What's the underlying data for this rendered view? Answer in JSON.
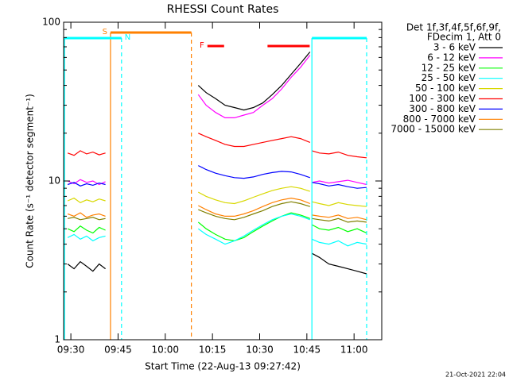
{
  "chart_data": {
    "type": "line",
    "title": "RHESSI Count Rates",
    "x_label": "Start Time (22-Aug-13 09:27:42)",
    "y_label": "Count Rate (s⁻¹ detector segment⁻¹)",
    "legend_header": [
      "Det 1f,3f,4f,5f,6f,9f,",
      "FDecim 1, Att 0"
    ],
    "footer": "21-Oct-2021 22:04",
    "log_y": true,
    "xlim": [
      567.7,
      668.8
    ],
    "ylim": [
      1,
      100
    ],
    "xticks": [
      {
        "value": 570,
        "label": "09:30"
      },
      {
        "value": 585,
        "label": "09:45"
      },
      {
        "value": 600,
        "label": "10:00"
      },
      {
        "value": 615,
        "label": "10:15"
      },
      {
        "value": 630,
        "label": "10:30"
      },
      {
        "value": 645,
        "label": "10:45"
      },
      {
        "value": 660,
        "label": "11:00"
      }
    ],
    "yticks": [
      1,
      10,
      100
    ],
    "minor_yticks": [
      2,
      3,
      4,
      5,
      6,
      7,
      8,
      9,
      20,
      30,
      40,
      50,
      60,
      70,
      80,
      90
    ],
    "x": [
      569,
      571,
      573,
      575,
      577,
      579,
      581,
      595,
      610.5,
      613,
      616,
      619,
      622,
      625,
      628,
      631,
      634,
      637,
      640,
      643,
      646,
      646.3,
      646.6,
      649,
      652,
      655,
      658,
      661,
      664
    ],
    "series": [
      {
        "name": "3 - 6 keV",
        "color": "#000000",
        "values": [
          3.0,
          2.8,
          3.1,
          2.9,
          2.7,
          3.0,
          2.8,
          null,
          40,
          36,
          33,
          30,
          29,
          28,
          29,
          31,
          35,
          40,
          47,
          55,
          65,
          null,
          3.5,
          3.3,
          3.0,
          2.9,
          2.8,
          2.7,
          2.6
        ]
      },
      {
        "name": "6 - 12 keV",
        "color": "#ff00ff",
        "values": [
          10,
          9.6,
          10.2,
          9.8,
          10,
          9.5,
          9.9,
          null,
          35,
          30,
          27,
          25,
          25,
          26,
          27,
          30,
          33,
          38,
          45,
          52,
          62,
          null,
          9.8,
          10,
          9.7,
          9.9,
          10.1,
          9.8,
          9.5
        ]
      },
      {
        "name": "12 - 25 keV",
        "color": "#00ff00",
        "values": [
          5.0,
          4.8,
          5.2,
          4.9,
          4.7,
          5.1,
          4.9,
          null,
          5.5,
          5.0,
          4.6,
          4.3,
          4.2,
          4.4,
          4.8,
          5.2,
          5.6,
          6.0,
          6.3,
          6.1,
          5.8,
          null,
          5.3,
          5.0,
          4.9,
          5.1,
          4.8,
          5.0,
          4.7
        ]
      },
      {
        "name": "25 - 50 keV",
        "color": "#00ffff",
        "values": [
          4.4,
          4.6,
          4.3,
          4.5,
          4.2,
          4.4,
          4.5,
          null,
          5.0,
          4.6,
          4.3,
          4.0,
          4.2,
          4.5,
          4.9,
          5.3,
          5.7,
          6.0,
          6.2,
          6.0,
          5.7,
          null,
          4.3,
          4.1,
          4.0,
          4.2,
          3.9,
          4.1,
          4.0
        ]
      },
      {
        "name": "50 - 100 keV",
        "color": "#d8d800",
        "values": [
          7.5,
          7.8,
          7.3,
          7.6,
          7.4,
          7.7,
          7.5,
          null,
          8.5,
          8.0,
          7.6,
          7.3,
          7.2,
          7.5,
          7.9,
          8.3,
          8.7,
          9.0,
          9.2,
          9.0,
          8.6,
          null,
          7.4,
          7.2,
          7.0,
          7.3,
          7.1,
          7.0,
          6.9
        ]
      },
      {
        "name": "100 - 300 keV",
        "color": "#ff0000",
        "values": [
          15,
          14.5,
          15.5,
          14.8,
          15.2,
          14.6,
          15,
          null,
          20,
          19,
          18,
          17,
          16.5,
          16.5,
          17,
          17.5,
          18,
          18.5,
          19,
          18.5,
          17.5,
          null,
          15.5,
          15,
          14.8,
          15.2,
          14.5,
          14.2,
          14
        ]
      },
      {
        "name": "300 - 800 keV",
        "color": "#0000ff",
        "values": [
          9.5,
          9.8,
          9.3,
          9.6,
          9.4,
          9.7,
          9.5,
          null,
          12.5,
          11.8,
          11.2,
          10.8,
          10.5,
          10.4,
          10.6,
          11,
          11.3,
          11.5,
          11.4,
          11,
          10.5,
          null,
          9.8,
          9.6,
          9.3,
          9.5,
          9.2,
          9.0,
          9.1
        ]
      },
      {
        "name": "800 - 7000 keV",
        "color": "#ff8000",
        "values": [
          6.2,
          6.0,
          6.3,
          5.9,
          6.1,
          6.2,
          6.0,
          null,
          7.0,
          6.6,
          6.2,
          6.0,
          6.0,
          6.2,
          6.5,
          6.9,
          7.3,
          7.6,
          7.8,
          7.6,
          7.2,
          null,
          6.1,
          6.0,
          5.9,
          6.1,
          5.8,
          5.9,
          5.7
        ]
      },
      {
        "name": "7000 - 15000 keV",
        "color": "#808000",
        "values": [
          5.8,
          5.9,
          5.7,
          5.8,
          5.9,
          5.7,
          5.8,
          null,
          6.6,
          6.3,
          6.0,
          5.8,
          5.7,
          5.9,
          6.2,
          6.5,
          6.9,
          7.2,
          7.4,
          7.2,
          6.9,
          null,
          5.8,
          5.7,
          5.6,
          5.8,
          5.5,
          5.6,
          5.5
        ]
      }
    ],
    "intervals": [
      {
        "label": "S",
        "color": "#ff8000",
        "start": 582.6,
        "end": 608.3
      },
      {
        "label": "N",
        "color": "#00ffff",
        "start": 568.0,
        "end": 586.1
      },
      {
        "color": "#00ffff",
        "start": 646.6,
        "end": 664.0
      },
      {
        "label": "F",
        "color": "#ff0000",
        "start": 613.4,
        "end": 618.7
      },
      {
        "color": "#ff0000",
        "start": 632.5,
        "end": 645.9
      }
    ]
  }
}
